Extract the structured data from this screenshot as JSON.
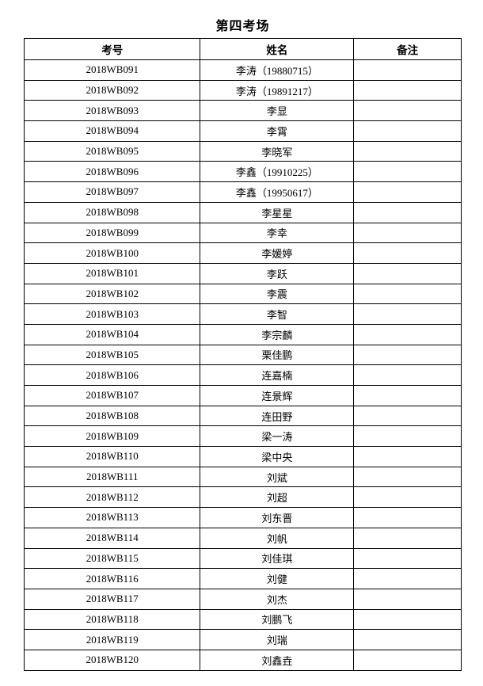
{
  "title": "第四考场",
  "table": {
    "columns": [
      "考号",
      "姓名",
      "备注"
    ],
    "rows": [
      {
        "exam_no": "2018WB091",
        "name": "李涛（19880715）",
        "remark": ""
      },
      {
        "exam_no": "2018WB092",
        "name": "李涛（19891217）",
        "remark": ""
      },
      {
        "exam_no": "2018WB093",
        "name": "李显",
        "remark": ""
      },
      {
        "exam_no": "2018WB094",
        "name": "李霄",
        "remark": ""
      },
      {
        "exam_no": "2018WB095",
        "name": "李晓军",
        "remark": ""
      },
      {
        "exam_no": "2018WB096",
        "name": "李鑫（19910225）",
        "remark": ""
      },
      {
        "exam_no": "2018WB097",
        "name": "李鑫（19950617）",
        "remark": ""
      },
      {
        "exam_no": "2018WB098",
        "name": "李星星",
        "remark": ""
      },
      {
        "exam_no": "2018WB099",
        "name": "李幸",
        "remark": ""
      },
      {
        "exam_no": "2018WB100",
        "name": "李媛婷",
        "remark": ""
      },
      {
        "exam_no": "2018WB101",
        "name": "李跃",
        "remark": ""
      },
      {
        "exam_no": "2018WB102",
        "name": "李震",
        "remark": ""
      },
      {
        "exam_no": "2018WB103",
        "name": "李智",
        "remark": ""
      },
      {
        "exam_no": "2018WB104",
        "name": "李宗麟",
        "remark": ""
      },
      {
        "exam_no": "2018WB105",
        "name": "栗佳鹏",
        "remark": ""
      },
      {
        "exam_no": "2018WB106",
        "name": "连嘉楠",
        "remark": ""
      },
      {
        "exam_no": "2018WB107",
        "name": "连景辉",
        "remark": ""
      },
      {
        "exam_no": "2018WB108",
        "name": "连田野",
        "remark": ""
      },
      {
        "exam_no": "2018WB109",
        "name": "梁一涛",
        "remark": ""
      },
      {
        "exam_no": "2018WB110",
        "name": "梁中央",
        "remark": ""
      },
      {
        "exam_no": "2018WB111",
        "name": "刘斌",
        "remark": ""
      },
      {
        "exam_no": "2018WB112",
        "name": "刘超",
        "remark": ""
      },
      {
        "exam_no": "2018WB113",
        "name": "刘东晋",
        "remark": ""
      },
      {
        "exam_no": "2018WB114",
        "name": "刘帆",
        "remark": ""
      },
      {
        "exam_no": "2018WB115",
        "name": "刘佳琪",
        "remark": ""
      },
      {
        "exam_no": "2018WB116",
        "name": "刘健",
        "remark": ""
      },
      {
        "exam_no": "2018WB117",
        "name": "刘杰",
        "remark": ""
      },
      {
        "exam_no": "2018WB118",
        "name": "刘鹏飞",
        "remark": ""
      },
      {
        "exam_no": "2018WB119",
        "name": "刘瑞",
        "remark": ""
      },
      {
        "exam_no": "2018WB120",
        "name": "刘鑫垚",
        "remark": ""
      }
    ]
  }
}
